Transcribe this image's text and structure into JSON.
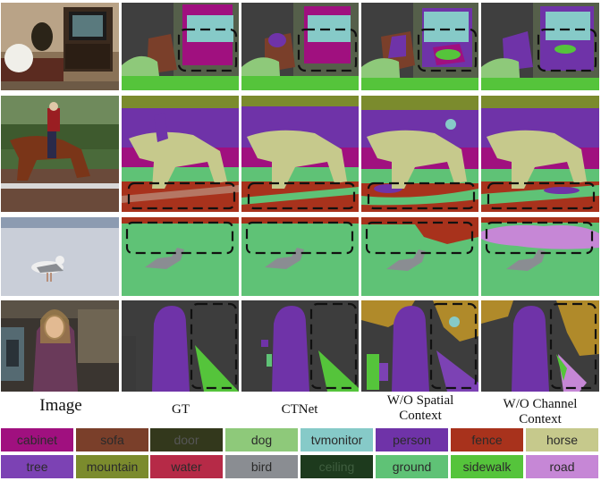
{
  "columns": {
    "image": "Image",
    "gt": "GT",
    "ctnet": "CTNet",
    "wo_spatial_1": "W/O Spatial",
    "wo_spatial_2": "Context",
    "wo_channel_1": "W/O Channel",
    "wo_channel_2": "Context"
  },
  "legend": [
    {
      "label": "cabinet",
      "color": "#a0107f",
      "text_color": "#2a2a2a"
    },
    {
      "label": "sofa",
      "color": "#7a3f2a",
      "text_color": "#2a2a2a"
    },
    {
      "label": "door",
      "color": "#33381c",
      "text_color": "#555555"
    },
    {
      "label": "dog",
      "color": "#8ec97a",
      "text_color": "#2a2a2a"
    },
    {
      "label": "tvmonitor",
      "color": "#86cac8",
      "text_color": "#2a2a2a"
    },
    {
      "label": "person",
      "color": "#6f33a8",
      "text_color": "#2a2a2a"
    },
    {
      "label": "fence",
      "color": "#a8321c",
      "text_color": "#2a2a2a"
    },
    {
      "label": "horse",
      "color": "#c6c98c",
      "text_color": "#2a2a2a"
    },
    {
      "label": "tree",
      "color": "#7c42b4",
      "text_color": "#2a2a2a"
    },
    {
      "label": "mountain",
      "color": "#7b8b2d",
      "text_color": "#2a2a2a"
    },
    {
      "label": "water",
      "color": "#b62a47",
      "text_color": "#2a2a2a"
    },
    {
      "label": "bird",
      "color": "#8a8d92",
      "text_color": "#2a2a2a"
    },
    {
      "label": "ceiling",
      "color": "#1d3a1d",
      "text_color": "#3f5e3f"
    },
    {
      "label": "ground",
      "color": "#5fc276",
      "text_color": "#2a2a2a"
    },
    {
      "label": "sidewalk",
      "color": "#55c43b",
      "text_color": "#2a2a2a"
    },
    {
      "label": "road",
      "color": "#c687d6",
      "text_color": "#2a2a2a"
    }
  ]
}
